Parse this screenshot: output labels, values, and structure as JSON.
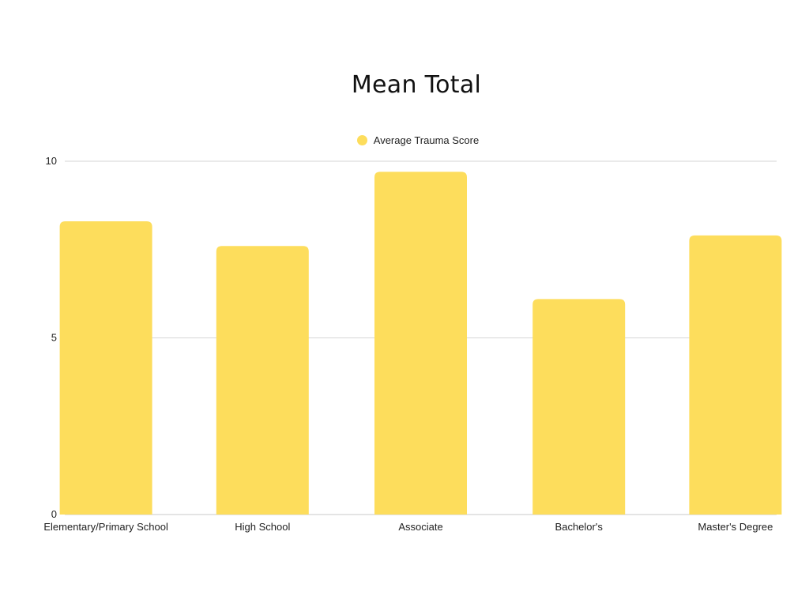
{
  "chart_data": {
    "type": "bar",
    "title": "Mean Total",
    "xlabel": "",
    "ylabel": "",
    "categories": [
      "Elementary/Primary School",
      "High School",
      "Associate",
      "Bachelor's",
      "Master's Degree"
    ],
    "series": [
      {
        "name": "Average Trauma Score",
        "values": [
          8.3,
          7.6,
          9.7,
          6.1,
          7.9
        ],
        "color": "#fddd5c"
      }
    ],
    "ylim": [
      0,
      10
    ],
    "yticks": [
      "0",
      "5",
      "10"
    ],
    "grid": true,
    "legend": "top-center"
  }
}
